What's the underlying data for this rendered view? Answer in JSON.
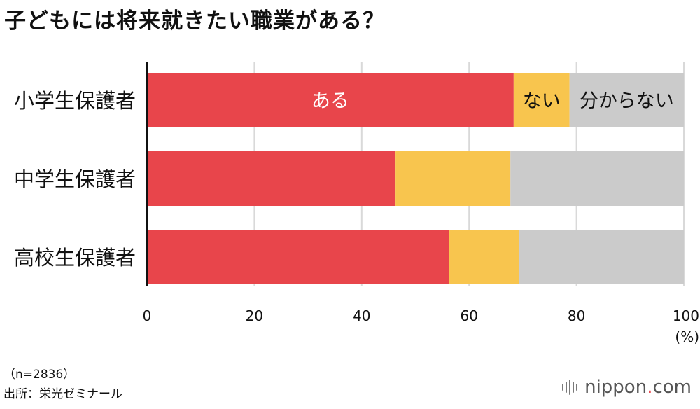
{
  "title": "子どもには将来就きたい職業がある？",
  "chart_data": {
    "type": "bar",
    "orientation": "horizontal",
    "stacked": true,
    "categories": [
      "小学生保護者",
      "中学生保護者",
      "高校生保護者"
    ],
    "series": [
      {
        "name": "ある",
        "values": [
          68.3,
          46.3,
          56.2
        ],
        "color": "#e8454b"
      },
      {
        "name": "ない",
        "values": [
          10.4,
          21.4,
          13.1
        ],
        "color": "#f8c54e"
      },
      {
        "name": "分からない",
        "values": [
          21.3,
          32.3,
          30.7
        ],
        "color": "#cbcbcb"
      }
    ],
    "xlim": [
      0,
      100
    ],
    "xticks": [
      0,
      20,
      40,
      60,
      80,
      100
    ],
    "xunit": "(%)",
    "grid": true,
    "legend": "inline labels on first bar"
  },
  "notes": {
    "sample": "（n=2836）",
    "source": "出所：栄光ゼミナール"
  },
  "brand": {
    "name": "nippon",
    "dot": ".",
    "suffix": "com"
  }
}
